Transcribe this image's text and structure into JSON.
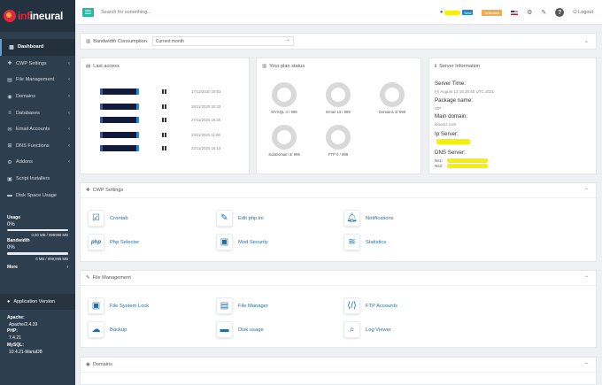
{
  "brand": {
    "logo_text_a": "inf",
    "logo_text_b": "ineural"
  },
  "search": {
    "placeholder": "Search for something..."
  },
  "topbar": {
    "badge_new": "New",
    "badge_plan": "Unlimited",
    "logout": "Logout"
  },
  "sidebar": {
    "items": [
      {
        "label": "Dashboard",
        "icon": "dashboard-icon"
      },
      {
        "label": "CWP Settings",
        "icon": "puzzle-icon"
      },
      {
        "label": "File Management",
        "icon": "folder-icon"
      },
      {
        "label": "Domains",
        "icon": "globe-icon"
      },
      {
        "label": "Databases",
        "icon": "database-icon"
      },
      {
        "label": "Email Accounts",
        "icon": "envelope-icon"
      },
      {
        "label": "DNS Functions",
        "icon": "dns-icon"
      },
      {
        "label": "Addons",
        "icon": "addons-icon"
      },
      {
        "label": "Script Installers",
        "icon": "script-icon"
      },
      {
        "label": "Disk Space Usage",
        "icon": "disk-icon"
      }
    ],
    "usage_label": "Usage",
    "usage_pct": "0%",
    "usage_val": "0,00 MB / 999999 MB",
    "bandwidth_label": "Bandwidth",
    "bandwidth_pct": "0%",
    "bandwidth_val": "0 MB / 999,999 MB",
    "more_label": "More",
    "app_version_label": "Application Version",
    "apache_label": "Apache:",
    "apache_val": "Apache/2.4.39",
    "php_label": "PHP:",
    "php_val": "7.4.21",
    "mysql_label": "MySQL:",
    "mysql_val": "10.4.21-MariaDB"
  },
  "bandwidth": {
    "title": "Bandwidth Consumption",
    "selected": "Current month"
  },
  "last_access": {
    "title": "Last access",
    "rows": [
      {
        "date": "17/12/2020 19:53"
      },
      {
        "date": "28/11/2020 20:33"
      },
      {
        "date": "27/11/2020 19:30"
      },
      {
        "date": "23/11/2020 11:09"
      },
      {
        "date": "22/11/2020 16:13"
      }
    ]
  },
  "plan_status": {
    "title": "Your plan status",
    "items": [
      {
        "label": "MYSQL 4 / 999",
        "value": 4,
        "max": 999
      },
      {
        "label": "Email 13 / 999",
        "value": 13,
        "max": 999
      },
      {
        "label": "Domains 3/ 999",
        "value": 3,
        "max": 999
      },
      {
        "label": "SubDomain 3/ 999",
        "value": 3,
        "max": 999
      },
      {
        "label": "FTP 0 / 999",
        "value": 0,
        "max": 999
      }
    ]
  },
  "server_info": {
    "title": "Server Information",
    "server_time_label": "Server Time:",
    "server_time_val": "Fri August 13 16:26:40 UTC 2021",
    "package_label": "Package name:",
    "package_val": "VIP",
    "main_domain_label": "Main domain:",
    "main_domain_val": "iboomz.com",
    "ip_label": "Ip Server:",
    "dns_label": "DNS Server:",
    "ns1_label": "Ns1:",
    "ns2_label": "Ns2:"
  },
  "cwp_settings": {
    "title": "CWP Settings",
    "items": [
      {
        "label": "Crontab",
        "icon": "crontab-icon"
      },
      {
        "label": "Edit php.ini",
        "icon": "edit-file-icon"
      },
      {
        "label": "Notifications",
        "icon": "bell-icon"
      },
      {
        "label": "Php Selector",
        "icon": "php-icon"
      },
      {
        "label": "Mod Security",
        "icon": "lock-icon"
      },
      {
        "label": "Statistics",
        "icon": "stats-icon"
      }
    ]
  },
  "file_management": {
    "title": "File Management",
    "items": [
      {
        "label": "File System Lock",
        "icon": "lock-icon"
      },
      {
        "label": "File Manager",
        "icon": "file-manager-icon"
      },
      {
        "label": "FTP Accounts",
        "icon": "ftp-icon"
      },
      {
        "label": "Backup",
        "icon": "cloud-icon"
      },
      {
        "label": "Disk usage",
        "icon": "disk-icon"
      },
      {
        "label": "Log Viewer",
        "icon": "search-icon"
      }
    ]
  },
  "domains": {
    "title": "Domains"
  },
  "colors": {
    "accent": "#26b99a",
    "sidebar": "#2d3e4e",
    "link": "#1f6fa8",
    "plan_badge": "#f0ad4e",
    "new_badge": "#1e88c9"
  }
}
